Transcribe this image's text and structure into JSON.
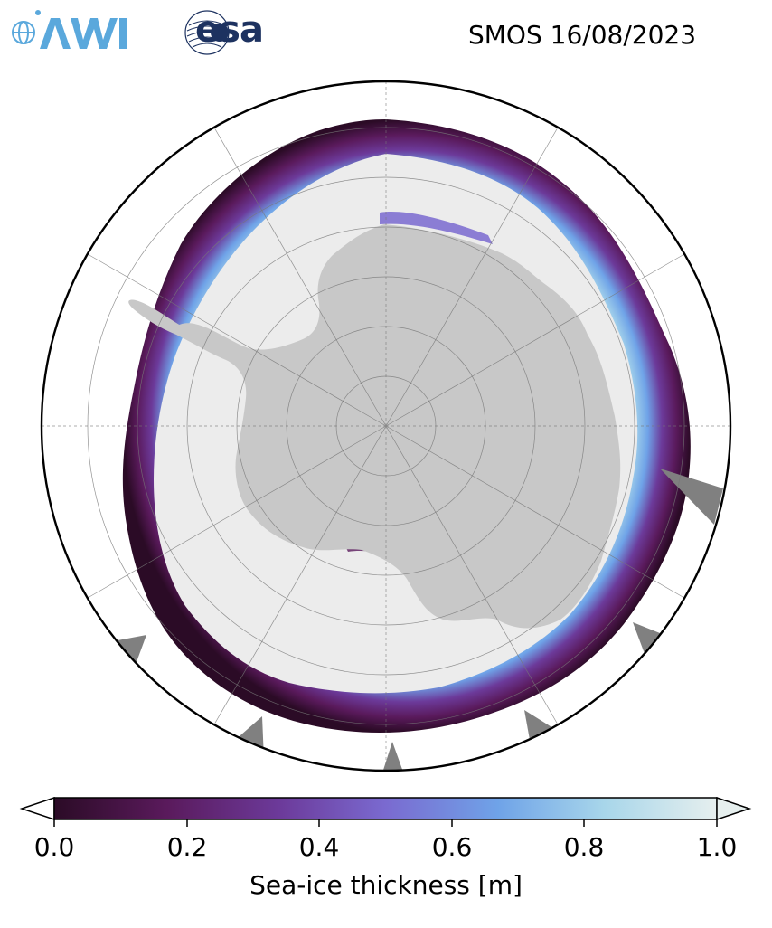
{
  "title": "SMOS 16/08/2023",
  "logos": {
    "left": "AWI",
    "right": "esa"
  },
  "colorbar": {
    "label": "Sea-ice thickness [m]",
    "ticks": [
      "0.0",
      "0.2",
      "0.4",
      "0.6",
      "0.8",
      "1.0"
    ],
    "min": 0.0,
    "max": 1.0,
    "extend": "both",
    "colormap": [
      "#2b0b26",
      "#5a1a5c",
      "#6c3a9a",
      "#7a6ad0",
      "#6fa3e8",
      "#a8d6ea",
      "#e6efee"
    ]
  },
  "map": {
    "projection": "south-polar-stereographic",
    "land_color": "#c8c8c8",
    "ice_interior_color": "#ececec",
    "no_data_color": "#808080",
    "gridlines": true
  }
}
